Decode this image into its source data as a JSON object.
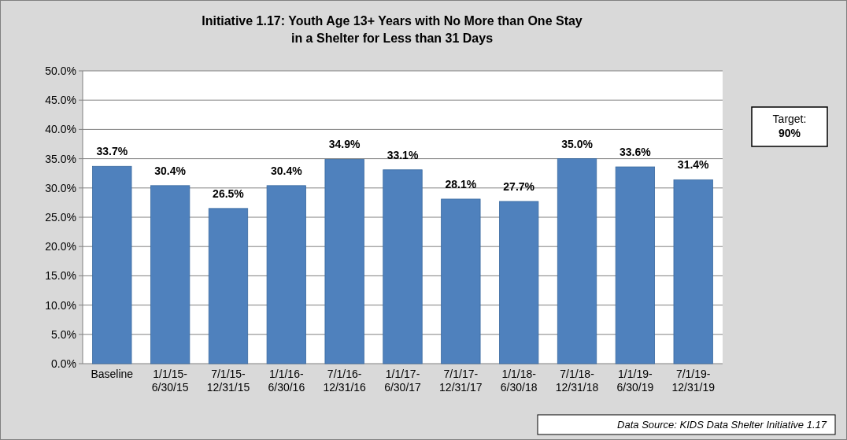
{
  "chart_data": {
    "type": "bar",
    "title": "Initiative 1.17: Youth Age 13+ Years with No More than One Stay\nin a Shelter for Less than 31 Days",
    "categories": [
      "Baseline",
      "1/1/15-6/30/15",
      "7/1/15-12/31/15",
      "1/1/16-6/30/16",
      "7/1/16-12/31/16",
      "1/1/17-6/30/17",
      "7/1/17-12/31/17",
      "1/1/18-6/30/18",
      "7/1/18-12/31/18",
      "1/1/19-6/30/19",
      "7/1/19-12/31/19"
    ],
    "values": [
      33.7,
      30.4,
      26.5,
      30.4,
      34.9,
      33.1,
      28.1,
      27.7,
      35.0,
      33.6,
      31.4
    ],
    "value_labels": [
      "33.7%",
      "30.4%",
      "26.5%",
      "30.4%",
      "34.9%",
      "33.1%",
      "28.1%",
      "27.7%",
      "35.0%",
      "33.6%",
      "31.4%"
    ],
    "color": "#4f81bd",
    "ylim": [
      0,
      50
    ],
    "yticks": [
      {
        "value": 0,
        "label": "0.0%"
      },
      {
        "value": 5,
        "label": "5.0%"
      },
      {
        "value": 10,
        "label": "10.0%"
      },
      {
        "value": 15,
        "label": "15.0%"
      },
      {
        "value": 20,
        "label": "20.0%"
      },
      {
        "value": 25,
        "label": "25.0%"
      },
      {
        "value": 30,
        "label": "30.0%"
      },
      {
        "value": 35,
        "label": "35.0%"
      },
      {
        "value": 40,
        "label": "40.0%"
      },
      {
        "value": 45,
        "label": "45.0%"
      },
      {
        "value": 50,
        "label": "50.0%"
      }
    ],
    "grid": "y",
    "annotations": [
      "Target:\n90%",
      "Data Source: KIDS Data Shelter Initiative 1.17"
    ]
  }
}
